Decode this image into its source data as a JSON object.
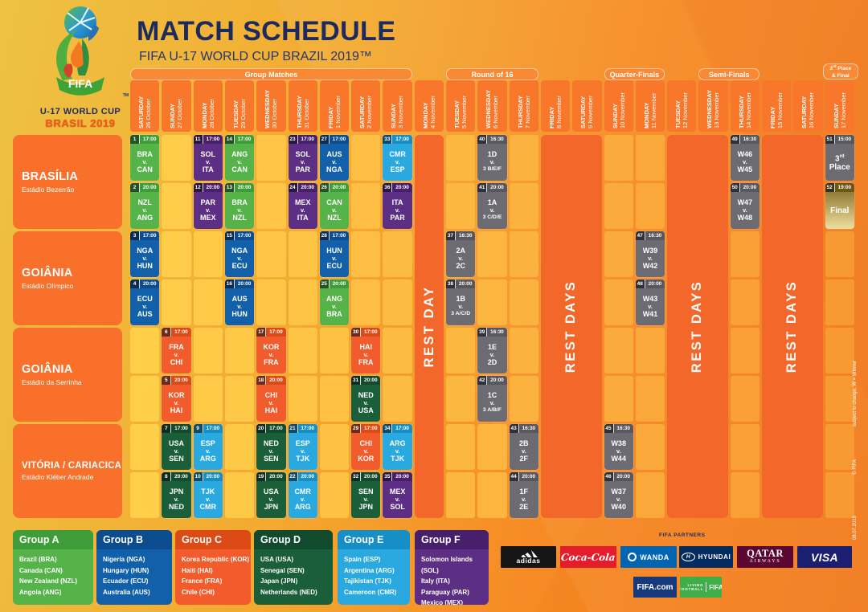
{
  "poster": {
    "title": "MATCH SCHEDULE",
    "subtitle": "FIFA U-17 WORLD CUP BRAZIL 2019™",
    "logo": {
      "fifa": "FIFA",
      "tm": "TM",
      "line1": "U-17 WORLD CUP",
      "line2": "BRASIL 2019"
    },
    "vs": "v.",
    "footnote_side": "subject to change, W = Winner",
    "footnote_date": "08.07.2019",
    "footnote_copyright": "© FIFA"
  },
  "phases": [
    {
      "label": "Group Matches",
      "start": 1,
      "span": 9
    },
    {
      "label": "Round of 16",
      "start": 11,
      "span": 3
    },
    {
      "label": "Quarter-Finals",
      "start": 16,
      "span": 2
    },
    {
      "label": "Semi-Finals",
      "start": 19,
      "span": 2
    }
  ],
  "final_band": {
    "lines": [
      "3rd Place",
      "& Final"
    ],
    "col": 23
  },
  "columns": [
    {
      "day": "SATURDAY",
      "date": "26 October"
    },
    {
      "day": "SUNDAY",
      "date": "27 October"
    },
    {
      "day": "MONDAY",
      "date": "28 October"
    },
    {
      "day": "TUESDAY",
      "date": "29 October"
    },
    {
      "day": "WEDNESDAY",
      "date": "30 October"
    },
    {
      "day": "THURSDAY",
      "date": "31 October"
    },
    {
      "day": "FRIDAY",
      "date": "1 November"
    },
    {
      "day": "SATURDAY",
      "date": "2 November"
    },
    {
      "day": "SUNDAY",
      "date": "3 November"
    },
    {
      "day": "MONDAY",
      "date": "4 November"
    },
    {
      "day": "TUESDAY",
      "date": "5 November"
    },
    {
      "day": "WEDNESDAY",
      "date": "6 November"
    },
    {
      "day": "THURSDAY",
      "date": "7 November"
    },
    {
      "day": "FRIDAY",
      "date": "8 November"
    },
    {
      "day": "SATURDAY",
      "date": "9 November"
    },
    {
      "day": "SUNDAY",
      "date": "10 November"
    },
    {
      "day": "MONDAY",
      "date": "11 November"
    },
    {
      "day": "TUESDAY",
      "date": "12 November"
    },
    {
      "day": "WEDNESDAY",
      "date": "13 November"
    },
    {
      "day": "THURSDAY",
      "date": "14 November"
    },
    {
      "day": "FRIDAY",
      "date": "15 November"
    },
    {
      "day": "SATURDAY",
      "date": "16 November"
    },
    {
      "day": "SUNDAY",
      "date": "17 November"
    }
  ],
  "venues": [
    {
      "name": "BRASÍLIA",
      "stadium": "Estádio Bezerrão"
    },
    {
      "name": "GOIÂNIA",
      "stadium": "Estádio Olímpico"
    },
    {
      "name": "GOIÂNIA",
      "stadium": "Estádio da Serrinha"
    },
    {
      "name": "VITÓRIA / CARIACICA",
      "stadium": "Estádio Kléber Andrade"
    }
  ],
  "rest_blocks": [
    {
      "label": "REST DAY",
      "col": 10,
      "span": 1
    },
    {
      "label": "REST DAYS",
      "col": 14,
      "span": 2
    },
    {
      "label": "REST DAYS",
      "col": 18,
      "span": 2
    },
    {
      "label": "REST DAYS",
      "col": 21,
      "span": 2
    }
  ],
  "matches": [
    {
      "n": "1",
      "t": "17:00",
      "a": "BRA",
      "b": "CAN",
      "g": "A",
      "c": 1,
      "r": 1
    },
    {
      "n": "11",
      "t": "17:00",
      "a": "SOL",
      "b": "ITA",
      "g": "F",
      "c": 3,
      "r": 1
    },
    {
      "n": "14",
      "t": "17:00",
      "a": "ANG",
      "b": "CAN",
      "g": "A",
      "c": 4,
      "r": 1
    },
    {
      "n": "23",
      "t": "17:00",
      "a": "SOL",
      "b": "PAR",
      "g": "F",
      "c": 6,
      "r": 1
    },
    {
      "n": "27",
      "t": "17:00",
      "a": "AUS",
      "b": "NGA",
      "g": "B",
      "c": 7,
      "r": 1
    },
    {
      "n": "33",
      "t": "17:00",
      "a": "CMR",
      "b": "ESP",
      "g": "E",
      "c": 9,
      "r": 1
    },
    {
      "n": "40",
      "t": "16:30",
      "a": "1D",
      "b": "3 B/E/F",
      "g": "K",
      "c": 12,
      "r": 1
    },
    {
      "n": "49",
      "t": "16:30",
      "a": "W46",
      "b": "W45",
      "g": "K",
      "c": 20,
      "r": 1
    },
    {
      "n": "51",
      "t": "15:00",
      "label": "3rd Place",
      "g": "K",
      "c": 23,
      "r": 1
    },
    {
      "n": "2",
      "t": "20:00",
      "a": "NZL",
      "b": "ANG",
      "g": "A",
      "c": 1,
      "r": 2
    },
    {
      "n": "12",
      "t": "20:00",
      "a": "PAR",
      "b": "MEX",
      "g": "F",
      "c": 3,
      "r": 2
    },
    {
      "n": "13",
      "t": "20:00",
      "a": "BRA",
      "b": "NZL",
      "g": "A",
      "c": 4,
      "r": 2
    },
    {
      "n": "24",
      "t": "20:00",
      "a": "MEX",
      "b": "ITA",
      "g": "F",
      "c": 6,
      "r": 2
    },
    {
      "n": "26",
      "t": "20:00",
      "a": "CAN",
      "b": "NZL",
      "g": "A",
      "c": 7,
      "r": 2
    },
    {
      "n": "36",
      "t": "20:00",
      "a": "ITA",
      "b": "PAR",
      "g": "F",
      "c": 9,
      "r": 2
    },
    {
      "n": "41",
      "t": "20:00",
      "a": "1A",
      "b": "3 C/D/E",
      "g": "K",
      "c": 12,
      "r": 2
    },
    {
      "n": "50",
      "t": "20:00",
      "a": "W47",
      "b": "W48",
      "g": "K",
      "c": 20,
      "r": 2
    },
    {
      "n": "52",
      "t": "19:00",
      "label": "Final",
      "g": "G",
      "c": 23,
      "r": 2
    },
    {
      "n": "3",
      "t": "17:00",
      "a": "NGA",
      "b": "HUN",
      "g": "B",
      "c": 1,
      "r": 3
    },
    {
      "n": "15",
      "t": "17:00",
      "a": "NGA",
      "b": "ECU",
      "g": "B",
      "c": 4,
      "r": 3
    },
    {
      "n": "28",
      "t": "17:00",
      "a": "HUN",
      "b": "ECU",
      "g": "B",
      "c": 7,
      "r": 3
    },
    {
      "n": "37",
      "t": "16:30",
      "a": "2A",
      "b": "2C",
      "g": "K",
      "c": 11,
      "r": 3
    },
    {
      "n": "47",
      "t": "16:30",
      "a": "W39",
      "b": "W42",
      "g": "K",
      "c": 17,
      "r": 3
    },
    {
      "n": "4",
      "t": "20:00",
      "a": "ECU",
      "b": "AUS",
      "g": "B",
      "c": 1,
      "r": 4
    },
    {
      "n": "16",
      "t": "20:00",
      "a": "AUS",
      "b": "HUN",
      "g": "B",
      "c": 4,
      "r": 4
    },
    {
      "n": "25",
      "t": "20:00",
      "a": "ANG",
      "b": "BRA",
      "g": "A",
      "c": 7,
      "r": 4
    },
    {
      "n": "38",
      "t": "20:00",
      "a": "1B",
      "b": "3 A/C/D",
      "g": "K",
      "c": 11,
      "r": 4
    },
    {
      "n": "48",
      "t": "20:00",
      "a": "W43",
      "b": "W41",
      "g": "K",
      "c": 17,
      "r": 4
    },
    {
      "n": "6",
      "t": "17:00",
      "a": "FRA",
      "b": "CHI",
      "g": "C",
      "c": 2,
      "r": 5
    },
    {
      "n": "17",
      "t": "17:00",
      "a": "KOR",
      "b": "FRA",
      "g": "C",
      "c": 5,
      "r": 5
    },
    {
      "n": "30",
      "t": "17:00",
      "a": "HAI",
      "b": "FRA",
      "g": "C",
      "c": 8,
      "r": 5
    },
    {
      "n": "39",
      "t": "16:30",
      "a": "1E",
      "b": "2D",
      "g": "K",
      "c": 12,
      "r": 5
    },
    {
      "n": "5",
      "t": "20:00",
      "a": "KOR",
      "b": "HAI",
      "g": "C",
      "c": 2,
      "r": 6
    },
    {
      "n": "18",
      "t": "20:00",
      "a": "CHI",
      "b": "HAI",
      "g": "C",
      "c": 5,
      "r": 6
    },
    {
      "n": "31",
      "t": "20:00",
      "a": "NED",
      "b": "USA",
      "g": "D",
      "c": 8,
      "r": 6
    },
    {
      "n": "42",
      "t": "20:00",
      "a": "1C",
      "b": "3 A/B/F",
      "g": "K",
      "c": 12,
      "r": 6
    },
    {
      "n": "7",
      "t": "17:00",
      "a": "USA",
      "b": "SEN",
      "g": "D",
      "c": 2,
      "r": 7
    },
    {
      "n": "9",
      "t": "17:00",
      "a": "ESP",
      "b": "ARG",
      "g": "E",
      "c": 3,
      "r": 7
    },
    {
      "n": "20",
      "t": "17:00",
      "a": "NED",
      "b": "SEN",
      "g": "D",
      "c": 5,
      "r": 7
    },
    {
      "n": "21",
      "t": "17:00",
      "a": "ESP",
      "b": "TJK",
      "g": "E",
      "c": 6,
      "r": 7
    },
    {
      "n": "29",
      "t": "17:00",
      "a": "CHI",
      "b": "KOR",
      "g": "C",
      "c": 8,
      "r": 7
    },
    {
      "n": "34",
      "t": "17:00",
      "a": "ARG",
      "b": "TJK",
      "g": "E",
      "c": 9,
      "r": 7
    },
    {
      "n": "43",
      "t": "16:30",
      "a": "2B",
      "b": "2F",
      "g": "K",
      "c": 13,
      "r": 7
    },
    {
      "n": "45",
      "t": "16:30",
      "a": "W38",
      "b": "W44",
      "g": "K",
      "c": 16,
      "r": 7
    },
    {
      "n": "8",
      "t": "20:00",
      "a": "JPN",
      "b": "NED",
      "g": "D",
      "c": 2,
      "r": 8
    },
    {
      "n": "10",
      "t": "20:00",
      "a": "TJK",
      "b": "CMR",
      "g": "E",
      "c": 3,
      "r": 8
    },
    {
      "n": "19",
      "t": "20:00",
      "a": "USA",
      "b": "JPN",
      "g": "D",
      "c": 5,
      "r": 8
    },
    {
      "n": "22",
      "t": "20:00",
      "a": "CMR",
      "b": "ARG",
      "g": "E",
      "c": 6,
      "r": 8
    },
    {
      "n": "32",
      "t": "20:00",
      "a": "SEN",
      "b": "JPN",
      "g": "D",
      "c": 8,
      "r": 8
    },
    {
      "n": "35",
      "t": "20:00",
      "a": "MEX",
      "b": "SOL",
      "g": "F",
      "c": 9,
      "r": 8
    },
    {
      "n": "44",
      "t": "20:00",
      "a": "1F",
      "b": "2E",
      "g": "K",
      "c": 13,
      "r": 8
    },
    {
      "n": "46",
      "t": "20:00",
      "a": "W37",
      "b": "W40",
      "g": "K",
      "c": 16,
      "r": 8
    }
  ],
  "groups_legend": [
    {
      "name": "Group A",
      "key": "A",
      "teams": [
        "Brazil (BRA)",
        "Canada (CAN)",
        "New Zealand (NZL)",
        "Angola (ANG)"
      ]
    },
    {
      "name": "Group B",
      "key": "B",
      "teams": [
        "Nigeria (NGA)",
        "Hungary (HUN)",
        "Ecuador (ECU)",
        "Australia (AUS)"
      ]
    },
    {
      "name": "Group C",
      "key": "C",
      "teams": [
        "Korea Republic (KOR)",
        "Haiti (HAI)",
        "France (FRA)",
        "Chile (CHI)"
      ]
    },
    {
      "name": "Group D",
      "key": "D",
      "teams": [
        "USA (USA)",
        "Senegal (SEN)",
        "Japan (JPN)",
        "Netherlands (NED)"
      ]
    },
    {
      "name": "Group E",
      "key": "E",
      "teams": [
        "Spain (ESP)",
        "Argentina (ARG)",
        "Tajikistan (TJK)",
        "Cameroon (CMR)"
      ]
    },
    {
      "name": "Group F",
      "key": "F",
      "teams": [
        "Solomon Islands (SOL)",
        "Italy (ITA)",
        "Paraguay (PAR)",
        "Mexico (MEX)"
      ]
    }
  ],
  "partners": {
    "heading": "FIFA PARTNERS",
    "logos": [
      {
        "type": "adidas",
        "label": "adidas",
        "bg": "#151515"
      },
      {
        "type": "coke",
        "label": "Coca-Cola",
        "bg": "#e41d2d"
      },
      {
        "type": "wanda",
        "label": "万达 WANDA",
        "bg": "#0165b2",
        "display": "WANDA"
      },
      {
        "type": "hyundai",
        "label": "HYUNDAI",
        "bg": "#042c60"
      },
      {
        "type": "qatar",
        "label": "QATAR AIRWAYS",
        "bg": "#5c0632",
        "line1": "QATAR",
        "line2": "AIRWAYS"
      },
      {
        "type": "visa",
        "label": "VISA",
        "bg": "#1a1f71"
      }
    ],
    "sub_logos": [
      {
        "type": "fifacom",
        "label": "FIFA.com",
        "bg": "#16397b"
      },
      {
        "type": "living",
        "label": "LIVING FOOTBALL FIFA",
        "bg": "#3fae49",
        "line1": "LIVING",
        "line2": "FOOTBALL",
        "line3": "FIFA"
      }
    ]
  },
  "colors": {
    "A": {
      "body": "#55b34a",
      "head": "#3e9d39"
    },
    "B": {
      "body": "#1160a9",
      "head": "#0b4d8f"
    },
    "C": {
      "body": "#f25b2b",
      "head": "#dc4a16"
    },
    "D": {
      "body": "#1a5e3a",
      "head": "#124a2d"
    },
    "E": {
      "body": "#29a9e0",
      "head": "#168fc6"
    },
    "F": {
      "body": "#5c2e84",
      "head": "#471f6b"
    },
    "K": {
      "body": "#6b6b71",
      "head": "#57575d"
    },
    "G": {
      "body": "#b5952f",
      "head": "#6b5712"
    },
    "gold_top": "#7c641c",
    "gold_bottom": "#eedfa0",
    "rest": "#f4672b",
    "venue": "#f8702a",
    "header": "#f8772b",
    "band": "#f98a35",
    "cell_left": "#ffcf4a",
    "cell_right": "#f89a34",
    "navy": "#1d2a5d"
  }
}
